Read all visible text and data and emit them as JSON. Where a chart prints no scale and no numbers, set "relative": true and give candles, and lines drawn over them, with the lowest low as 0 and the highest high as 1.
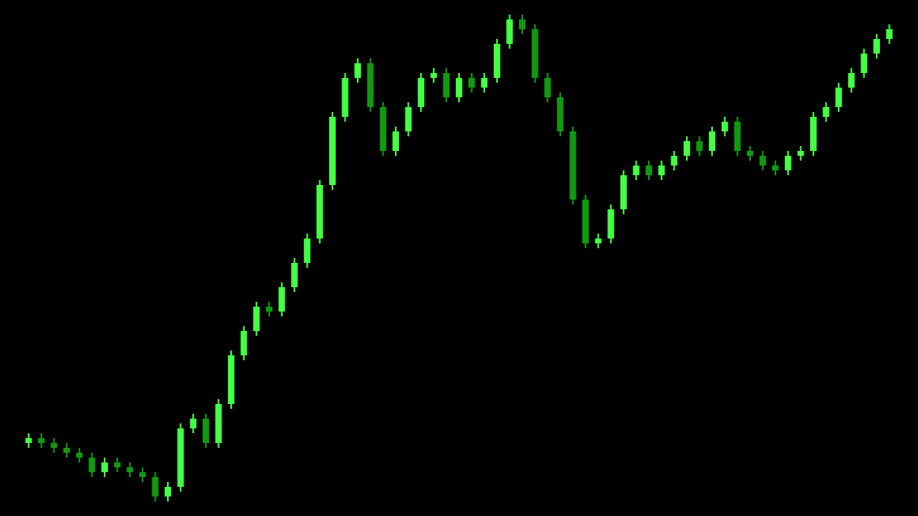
{
  "chart_data": {
    "type": "candlestick",
    "relative": true,
    "tick_labels": false,
    "grid": false,
    "colors": [
      "#44ff44",
      "#119911",
      "#119911",
      "#119911",
      "#119911",
      "#119911",
      "#44ff44",
      "#119911",
      "#119911",
      "#119911",
      "#119911",
      "#44ff44",
      "#44ff44",
      "#44ff44",
      "#119911",
      "#44ff44",
      "#44ff44",
      "#44ff44",
      "#44ff44",
      "#119911",
      "#44ff44",
      "#44ff44",
      "#44ff44",
      "#44ff44",
      "#44ff44",
      "#44ff44",
      "#44ff44",
      "#119911",
      "#119911",
      "#44ff44",
      "#44ff44",
      "#44ff44",
      "#44ff44",
      "#119911",
      "#44ff44",
      "#119911",
      "#44ff44",
      "#44ff44",
      "#44ff44",
      "#119911",
      "#119911",
      "#119911",
      "#119911",
      "#119911",
      "#119911",
      "#44ff44",
      "#44ff44",
      "#44ff44",
      "#44ff44",
      "#119911",
      "#44ff44",
      "#44ff44",
      "#44ff44",
      "#119911",
      "#44ff44",
      "#44ff44",
      "#119911",
      "#119911",
      "#119911",
      "#119911",
      "#44ff44",
      "#44ff44",
      "#44ff44",
      "#44ff44",
      "#44ff44",
      "#44ff44",
      "#44ff44",
      "#44ff44",
      "#44ff44"
    ],
    "categories": [
      null,
      null,
      null,
      null,
      null,
      null,
      null,
      null,
      null,
      null,
      null,
      null,
      null,
      null,
      null,
      null,
      null,
      null,
      null,
      null,
      null,
      null,
      null,
      null,
      null,
      null,
      null,
      null,
      null,
      null,
      null,
      null,
      null,
      null,
      null,
      null,
      null,
      null,
      null,
      null,
      null,
      null,
      null,
      null,
      null,
      null,
      null,
      null,
      null,
      null,
      null,
      null,
      null,
      null,
      null,
      null,
      null,
      null,
      null,
      null,
      null,
      null,
      null,
      null,
      null,
      null,
      null,
      null,
      null
    ],
    "ohlc": [
      [
        0.12,
        0.14,
        0.11,
        0.13
      ],
      [
        0.13,
        0.14,
        0.11,
        0.12
      ],
      [
        0.12,
        0.13,
        0.1,
        0.11
      ],
      [
        0.11,
        0.12,
        0.09,
        0.1
      ],
      [
        0.1,
        0.11,
        0.08,
        0.09
      ],
      [
        0.09,
        0.1,
        0.05,
        0.06
      ],
      [
        0.06,
        0.09,
        0.05,
        0.08
      ],
      [
        0.08,
        0.09,
        0.06,
        0.07
      ],
      [
        0.07,
        0.08,
        0.05,
        0.06
      ],
      [
        0.06,
        0.07,
        0.04,
        0.05
      ],
      [
        0.05,
        0.06,
        0.0,
        0.01
      ],
      [
        0.01,
        0.04,
        0.0,
        0.03
      ],
      [
        0.03,
        0.16,
        0.02,
        0.15
      ],
      [
        0.15,
        0.18,
        0.14,
        0.17
      ],
      [
        0.17,
        0.18,
        0.11,
        0.12
      ],
      [
        0.12,
        0.21,
        0.11,
        0.2
      ],
      [
        0.2,
        0.31,
        0.19,
        0.3
      ],
      [
        0.3,
        0.36,
        0.29,
        0.35
      ],
      [
        0.35,
        0.41,
        0.34,
        0.4
      ],
      [
        0.4,
        0.41,
        0.38,
        0.39
      ],
      [
        0.39,
        0.45,
        0.38,
        0.44
      ],
      [
        0.44,
        0.5,
        0.43,
        0.49
      ],
      [
        0.49,
        0.55,
        0.48,
        0.54
      ],
      [
        0.54,
        0.66,
        0.53,
        0.65
      ],
      [
        0.65,
        0.8,
        0.64,
        0.79
      ],
      [
        0.79,
        0.88,
        0.78,
        0.87
      ],
      [
        0.87,
        0.91,
        0.86,
        0.9
      ],
      [
        0.9,
        0.91,
        0.8,
        0.81
      ],
      [
        0.81,
        0.82,
        0.71,
        0.72
      ],
      [
        0.72,
        0.77,
        0.71,
        0.76
      ],
      [
        0.76,
        0.82,
        0.75,
        0.81
      ],
      [
        0.81,
        0.88,
        0.8,
        0.87
      ],
      [
        0.87,
        0.89,
        0.86,
        0.88
      ],
      [
        0.88,
        0.89,
        0.82,
        0.83
      ],
      [
        0.83,
        0.88,
        0.82,
        0.87
      ],
      [
        0.87,
        0.88,
        0.84,
        0.85
      ],
      [
        0.85,
        0.88,
        0.84,
        0.87
      ],
      [
        0.87,
        0.95,
        0.86,
        0.94
      ],
      [
        0.94,
        1.0,
        0.93,
        0.99
      ],
      [
        0.99,
        1.0,
        0.96,
        0.97
      ],
      [
        0.97,
        0.98,
        0.86,
        0.87
      ],
      [
        0.87,
        0.88,
        0.82,
        0.83
      ],
      [
        0.83,
        0.84,
        0.75,
        0.76
      ],
      [
        0.76,
        0.77,
        0.61,
        0.62
      ],
      [
        0.62,
        0.63,
        0.52,
        0.53
      ],
      [
        0.53,
        0.55,
        0.52,
        0.54
      ],
      [
        0.54,
        0.61,
        0.53,
        0.6
      ],
      [
        0.6,
        0.68,
        0.59,
        0.67
      ],
      [
        0.67,
        0.7,
        0.66,
        0.69
      ],
      [
        0.69,
        0.7,
        0.66,
        0.67
      ],
      [
        0.67,
        0.7,
        0.66,
        0.69
      ],
      [
        0.69,
        0.72,
        0.68,
        0.71
      ],
      [
        0.71,
        0.75,
        0.7,
        0.74
      ],
      [
        0.74,
        0.75,
        0.71,
        0.72
      ],
      [
        0.72,
        0.77,
        0.71,
        0.76
      ],
      [
        0.76,
        0.79,
        0.75,
        0.78
      ],
      [
        0.78,
        0.79,
        0.71,
        0.72
      ],
      [
        0.72,
        0.73,
        0.7,
        0.71
      ],
      [
        0.71,
        0.72,
        0.68,
        0.69
      ],
      [
        0.69,
        0.7,
        0.67,
        0.68
      ],
      [
        0.68,
        0.72,
        0.67,
        0.71
      ],
      [
        0.71,
        0.73,
        0.7,
        0.72
      ],
      [
        0.72,
        0.8,
        0.71,
        0.79
      ],
      [
        0.79,
        0.82,
        0.78,
        0.81
      ],
      [
        0.81,
        0.86,
        0.8,
        0.85
      ],
      [
        0.85,
        0.89,
        0.84,
        0.88
      ],
      [
        0.88,
        0.93,
        0.87,
        0.92
      ],
      [
        0.92,
        0.96,
        0.91,
        0.95
      ],
      [
        0.95,
        0.98,
        0.94,
        0.97
      ]
    ]
  }
}
